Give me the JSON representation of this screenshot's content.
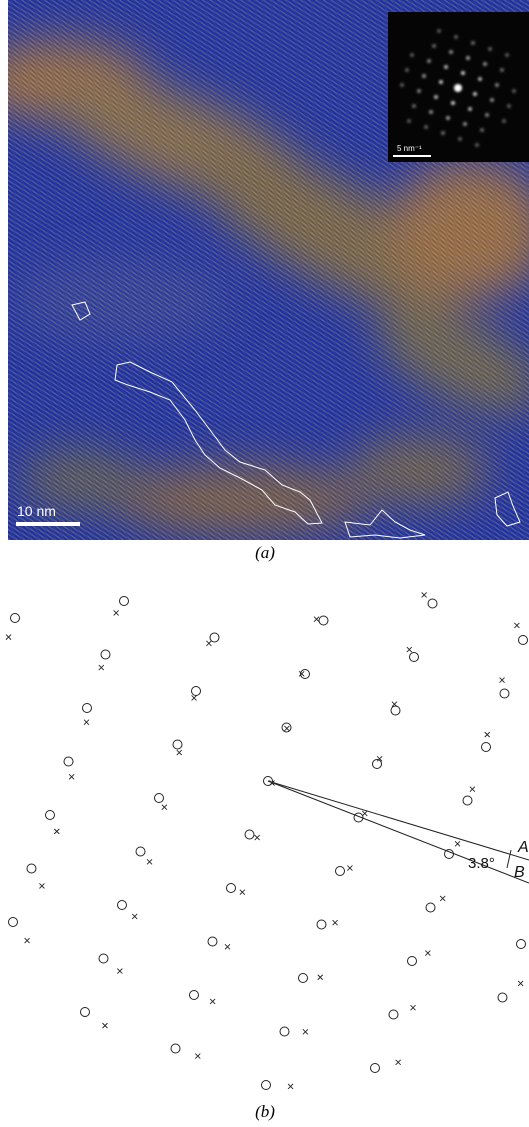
{
  "panel_a": {
    "scale_bar": "10 nm",
    "inset_scale_bar": "5 nm⁻¹",
    "caption": "(a)"
  },
  "panel_b": {
    "angle": "3.8°",
    "line_a": "A",
    "line_b": "B",
    "caption": "(b)"
  }
}
